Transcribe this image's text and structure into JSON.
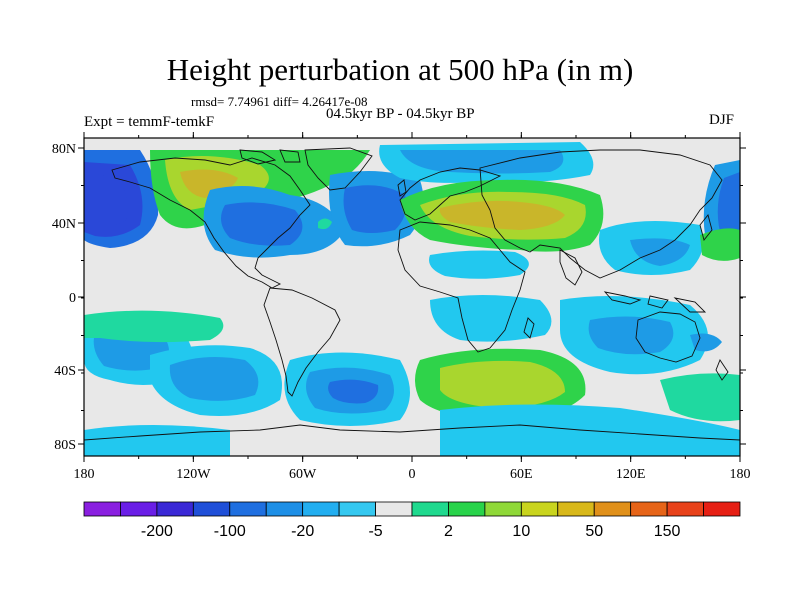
{
  "title": "Height perturbation at 500 hPa (in m)",
  "stats": "rmsd= 7.74961 diff= 4.26417e-08",
  "experiment": "Expt = temmF-temkF",
  "period": "04.5kyr BP - 04.5kyr BP",
  "season": "DJF",
  "axes": {
    "lat_labels": [
      "80N",
      "40N",
      "0",
      "40S",
      "80S"
    ],
    "lon_labels": [
      "180",
      "120W",
      "60W",
      "0",
      "60E",
      "120E",
      "180"
    ]
  },
  "colorbar": {
    "labels": [
      "-200",
      "-100",
      "-20",
      "-5",
      "2",
      "10",
      "50",
      "150"
    ],
    "colors": [
      "#8a1fe0",
      "#6a1ee6",
      "#3a28d6",
      "#1f4fd8",
      "#1f6fe0",
      "#1e8fe6",
      "#22aef0",
      "#35c8f0",
      "#e8e8e8",
      "#1fd98e",
      "#28d34a",
      "#8fd838",
      "#c9d41e",
      "#d8b81a",
      "#e0901a",
      "#e66418",
      "#e8421a",
      "#e61f14"
    ]
  },
  "colors": {
    "background": "#e8e8e8",
    "light_blue": "#22c8ef",
    "mid_blue": "#1e9be6",
    "dark_blue": "#1f6fe0",
    "deep_blue": "#2a48d8",
    "teal": "#1fd9a0",
    "green": "#2fd34a",
    "yellow_green": "#a9d62e",
    "ochre": "#c9b62a"
  }
}
